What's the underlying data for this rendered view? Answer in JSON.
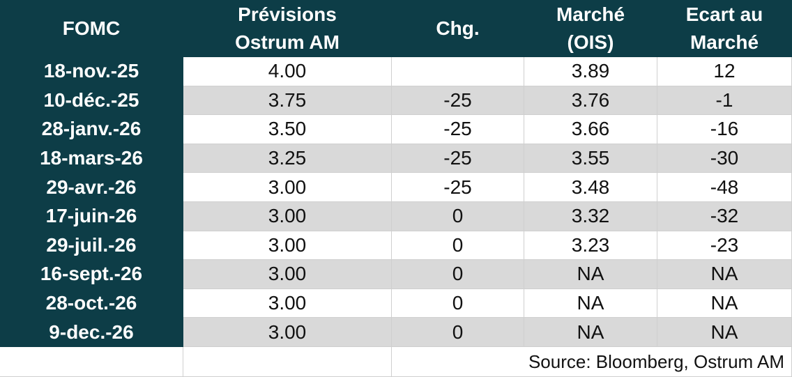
{
  "table": {
    "header": [
      [
        "FOMC"
      ],
      [
        "Prévisions",
        "Ostrum AM"
      ],
      [
        "Chg."
      ],
      [
        "Marché",
        "(OIS)"
      ],
      [
        "Ecart au",
        "Marché"
      ]
    ],
    "rows": [
      [
        "18-nov.-25",
        "4.00",
        null,
        "3.89",
        "12"
      ],
      [
        "10-déc.-25",
        "3.75",
        "-25",
        "3.76",
        "-1"
      ],
      [
        "28-janv.-26",
        "3.50",
        "-25",
        "3.66",
        "-16"
      ],
      [
        "18-mars-26",
        "3.25",
        "-25",
        "3.55",
        "-30"
      ],
      [
        "29-avr.-26",
        "3.00",
        "-25",
        "3.48",
        "-48"
      ],
      [
        "17-juin-26",
        "3.00",
        "0",
        "3.32",
        "-32"
      ],
      [
        "29-juil.-26",
        "3.00",
        "0",
        "3.23",
        "-23"
      ],
      [
        "16-sept.-26",
        "3.00",
        "0",
        "NA",
        "NA"
      ],
      [
        "28-oct.-26",
        "3.00",
        "0",
        "NA",
        "NA"
      ],
      [
        "9-dec.-26",
        "3.00",
        "0",
        "NA",
        "NA"
      ]
    ],
    "source": "Source: Bloomberg, Ostrum AM"
  }
}
